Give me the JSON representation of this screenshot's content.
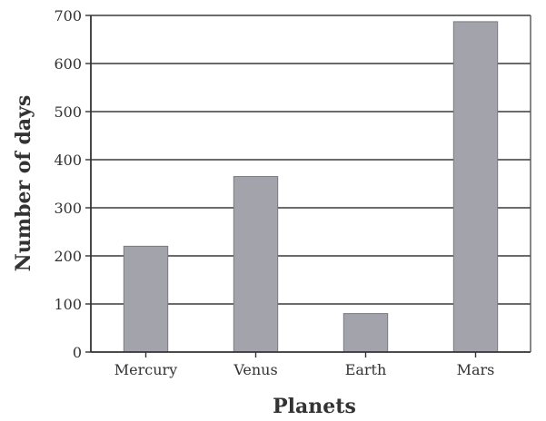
{
  "chart_data": {
    "type": "bar",
    "categories": [
      "Mercury",
      "Venus",
      "Earth",
      "Mars"
    ],
    "values": [
      220,
      365,
      80,
      687
    ],
    "title": "",
    "xlabel": "Planets",
    "ylabel": "Number of days",
    "ylim": [
      0,
      700
    ],
    "yticks": [
      0,
      100,
      200,
      300,
      400,
      500,
      600,
      700
    ],
    "grid": true,
    "legend": "none",
    "bar_color": "#a3a3ab"
  }
}
